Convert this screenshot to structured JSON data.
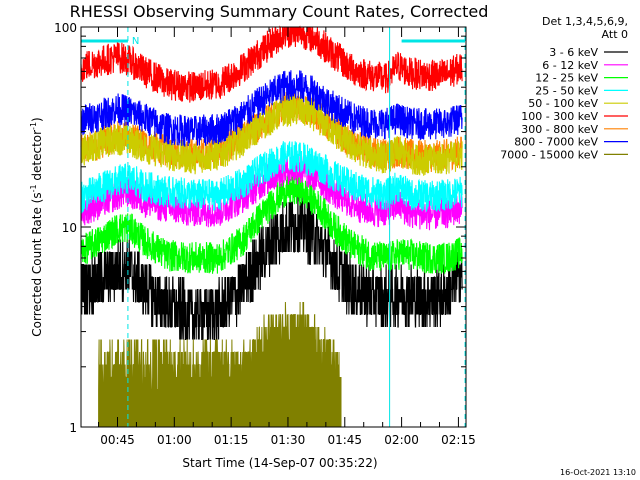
{
  "chart_data": {
    "type": "line",
    "title": "RHESSI Observing Summary Count Rates, Corrected",
    "xlabel": "Start Time (14-Sep-07 00:35:22)",
    "ylabel": "Corrected Count Rate (s⁻¹ detector⁻¹)",
    "ylabel_parts": {
      "main": "Corrected Count Rate (s",
      "exp1": "-1",
      "mid": " detector",
      "exp2": "-1",
      "end": ")"
    },
    "y_scale": "log",
    "ylim": [
      1,
      100
    ],
    "y_ticks": [
      {
        "value": 1,
        "label": "1"
      },
      {
        "value": 10,
        "label": "10"
      },
      {
        "value": 100,
        "label": "100"
      }
    ],
    "xlim": [
      "00:35:22",
      "02:17:00"
    ],
    "x_ticks": [
      "00:45",
      "01:00",
      "01:15",
      "01:30",
      "01:45",
      "02:00",
      "02:15"
    ],
    "detector_info": [
      "Det 1,3,4,5,6,9,",
      "Att 0"
    ],
    "flag_bar": {
      "label": "N",
      "color": "#00e5e5",
      "segments": [
        [
          "00:35:22",
          "00:47:45"
        ],
        [
          "02:00:00",
          "02:16:45"
        ]
      ]
    },
    "markers": [
      {
        "time": "00:47:45",
        "style": "dashed",
        "color": "#00e5e5"
      },
      {
        "time": "01:56:50",
        "style": "solid",
        "color": "#00e5e5"
      },
      {
        "time": "02:16:45",
        "style": "dashed",
        "color": "#00e5e5"
      }
    ],
    "series": [
      {
        "name": "3 - 6 keV",
        "color": "#000000",
        "points": [
          [
            "00:35:22",
            5
          ],
          [
            "00:40",
            5.5
          ],
          [
            "00:45",
            6
          ],
          [
            "00:48",
            6.3
          ],
          [
            "00:52",
            5
          ],
          [
            "00:58",
            4
          ],
          [
            "01:05",
            3.6
          ],
          [
            "01:12",
            3.8
          ],
          [
            "01:18",
            5
          ],
          [
            "01:24",
            7.5
          ],
          [
            "01:29",
            10
          ],
          [
            "01:33",
            10.5
          ],
          [
            "01:37",
            9
          ],
          [
            "01:42",
            6.5
          ],
          [
            "01:47",
            5
          ],
          [
            "01:52",
            4.5
          ],
          [
            "01:56",
            4.4
          ],
          [
            "02:00",
            4.6
          ],
          [
            "02:06",
            4.4
          ],
          [
            "02:12",
            4.6
          ],
          [
            "02:16",
            6
          ]
        ]
      },
      {
        "name": "6 - 12 keV",
        "color": "#ff00ff",
        "points": [
          [
            "00:35:22",
            12
          ],
          [
            "00:40",
            13
          ],
          [
            "00:45",
            14.5
          ],
          [
            "00:48",
            15
          ],
          [
            "00:52",
            13.5
          ],
          [
            "00:58",
            12.5
          ],
          [
            "01:05",
            12
          ],
          [
            "01:12",
            12
          ],
          [
            "01:18",
            14
          ],
          [
            "01:24",
            17
          ],
          [
            "01:29",
            19.5
          ],
          [
            "01:33",
            19.5
          ],
          [
            "01:37",
            18
          ],
          [
            "01:42",
            15
          ],
          [
            "01:47",
            13
          ],
          [
            "01:52",
            12
          ],
          [
            "01:56",
            12
          ],
          [
            "01:59",
            13
          ],
          [
            "02:02",
            11.8
          ],
          [
            "02:08",
            11.5
          ],
          [
            "02:12",
            11.8
          ],
          [
            "02:16",
            12.5
          ]
        ]
      },
      {
        "name": "12 - 25 keV",
        "color": "#00ff00",
        "points": [
          [
            "00:35:22",
            7.5
          ],
          [
            "00:40",
            8.5
          ],
          [
            "00:45",
            9.8
          ],
          [
            "00:48",
            10
          ],
          [
            "00:52",
            8.5
          ],
          [
            "00:58",
            7.2
          ],
          [
            "01:05",
            7
          ],
          [
            "01:12",
            7
          ],
          [
            "01:18",
            8.5
          ],
          [
            "01:24",
            12
          ],
          [
            "01:29",
            15
          ],
          [
            "01:33",
            15.5
          ],
          [
            "01:37",
            13.5
          ],
          [
            "01:42",
            10
          ],
          [
            "01:47",
            8
          ],
          [
            "01:52",
            7.2
          ],
          [
            "01:56",
            7
          ],
          [
            "02:00",
            7.4
          ],
          [
            "02:06",
            7
          ],
          [
            "02:12",
            7
          ],
          [
            "02:16",
            7.5
          ]
        ]
      },
      {
        "name": "25 - 50 keV",
        "color": "#00ffff",
        "points": [
          [
            "00:35:22",
            14
          ],
          [
            "00:40",
            15.5
          ],
          [
            "00:45",
            17
          ],
          [
            "00:48",
            17.5
          ],
          [
            "00:52",
            16
          ],
          [
            "00:58",
            15
          ],
          [
            "01:05",
            14.5
          ],
          [
            "01:12",
            14.5
          ],
          [
            "01:18",
            16.5
          ],
          [
            "01:24",
            20
          ],
          [
            "01:29",
            22.5
          ],
          [
            "01:33",
            22.5
          ],
          [
            "01:37",
            21
          ],
          [
            "01:42",
            18
          ],
          [
            "01:47",
            16
          ],
          [
            "01:52",
            15
          ],
          [
            "01:56",
            14.5
          ],
          [
            "01:59",
            16
          ],
          [
            "02:02",
            14.5
          ],
          [
            "02:08",
            14.2
          ],
          [
            "02:12",
            14.5
          ],
          [
            "02:16",
            15
          ]
        ]
      },
      {
        "name": "50 - 100 keV",
        "color": "#cccc00",
        "points": [
          [
            "00:35:22",
            24
          ],
          [
            "00:40",
            26
          ],
          [
            "00:45",
            27.5
          ],
          [
            "00:48",
            27
          ],
          [
            "00:52",
            25
          ],
          [
            "00:58",
            23
          ],
          [
            "01:05",
            22
          ],
          [
            "01:12",
            23
          ],
          [
            "01:18",
            27
          ],
          [
            "01:24",
            33
          ],
          [
            "01:29",
            38
          ],
          [
            "01:33",
            38.5
          ],
          [
            "01:37",
            36
          ],
          [
            "01:42",
            30
          ],
          [
            "01:47",
            25
          ],
          [
            "01:52",
            23
          ],
          [
            "01:56",
            22
          ],
          [
            "01:59",
            24
          ],
          [
            "02:02",
            22
          ],
          [
            "02:08",
            21.5
          ],
          [
            "02:12",
            22
          ],
          [
            "02:16",
            23
          ]
        ]
      },
      {
        "name": "100 - 300 keV",
        "color": "#ff0000",
        "points": [
          [
            "00:35:22",
            63
          ],
          [
            "00:40",
            67
          ],
          [
            "00:45",
            71
          ],
          [
            "00:48",
            68
          ],
          [
            "00:52",
            60
          ],
          [
            "00:58",
            52
          ],
          [
            "01:05",
            50
          ],
          [
            "01:12",
            52
          ],
          [
            "01:18",
            62
          ],
          [
            "01:24",
            78
          ],
          [
            "01:29",
            94
          ],
          [
            "01:33",
            95
          ],
          [
            "01:37",
            88
          ],
          [
            "01:42",
            73
          ],
          [
            "01:47",
            61
          ],
          [
            "01:52",
            57
          ],
          [
            "01:56",
            55
          ],
          [
            "01:59",
            64
          ],
          [
            "02:02",
            59
          ],
          [
            "02:08",
            57
          ],
          [
            "02:12",
            58
          ],
          [
            "02:16",
            63
          ]
        ]
      },
      {
        "name": "300 - 800 keV",
        "color": "#ff8000",
        "points": [
          [
            "00:35:22",
            24
          ],
          [
            "00:40",
            26
          ],
          [
            "00:45",
            28.5
          ],
          [
            "00:48",
            28
          ],
          [
            "00:52",
            26
          ],
          [
            "00:58",
            24
          ],
          [
            "01:05",
            23
          ],
          [
            "01:12",
            24
          ],
          [
            "01:18",
            28
          ],
          [
            "01:24",
            34
          ],
          [
            "01:29",
            40
          ],
          [
            "01:33",
            40.5
          ],
          [
            "01:37",
            37
          ],
          [
            "01:42",
            31
          ],
          [
            "01:47",
            26
          ],
          [
            "01:52",
            24
          ],
          [
            "01:56",
            23
          ],
          [
            "01:59",
            24
          ],
          [
            "02:02",
            23
          ],
          [
            "02:08",
            22.5
          ],
          [
            "02:12",
            23
          ],
          [
            "02:16",
            24
          ]
        ]
      },
      {
        "name": "800 - 7000 keV",
        "color": "#0000ff",
        "points": [
          [
            "00:35:22",
            34
          ],
          [
            "00:40",
            36
          ],
          [
            "00:45",
            39
          ],
          [
            "00:48",
            38
          ],
          [
            "00:52",
            35
          ],
          [
            "00:58",
            31
          ],
          [
            "01:05",
            30
          ],
          [
            "01:12",
            31
          ],
          [
            "01:18",
            36
          ],
          [
            "01:24",
            44
          ],
          [
            "01:29",
            51
          ],
          [
            "01:33",
            51
          ],
          [
            "01:37",
            47
          ],
          [
            "01:42",
            40
          ],
          [
            "01:47",
            35
          ],
          [
            "01:52",
            33
          ],
          [
            "01:56",
            33
          ],
          [
            "01:59",
            35
          ],
          [
            "02:02",
            33
          ],
          [
            "02:08",
            32.5
          ],
          [
            "02:12",
            33
          ],
          [
            "02:16",
            35
          ]
        ]
      },
      {
        "name": "7000 - 15000 keV",
        "color": "#808000",
        "points": [
          [
            "00:40:00",
            1.9
          ],
          [
            "00:44",
            1.9
          ],
          [
            "00:46",
            1.8
          ],
          [
            "00:48",
            1.9
          ],
          [
            "01:19",
            1.9
          ],
          [
            "01:22",
            2.3
          ],
          [
            "01:26",
            2.7
          ],
          [
            "01:30",
            3
          ],
          [
            "01:35",
            2.8
          ],
          [
            "01:39",
            2.3
          ],
          [
            "01:42",
            1.9
          ],
          [
            "01:44",
            1.8
          ]
        ]
      }
    ]
  }
}
